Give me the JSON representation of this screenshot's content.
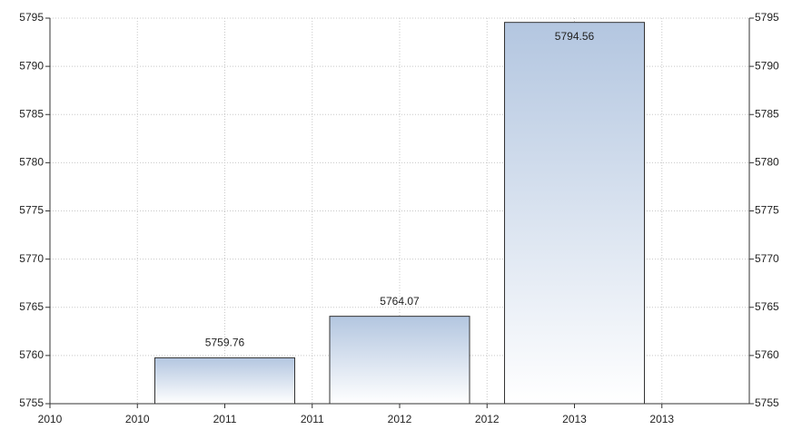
{
  "chart_data": {
    "type": "bar",
    "x": [
      2011,
      2012,
      2013
    ],
    "values": [
      5759.76,
      5764.07,
      5794.56
    ],
    "xlim": [
      2010,
      2014
    ],
    "xticks": [
      2010,
      {
        "value": 2010.5,
        "label": "2010"
      },
      2011,
      {
        "value": 2011.5,
        "label": "2011"
      },
      2012,
      {
        "value": 2012.5,
        "label": "2012"
      },
      2013,
      {
        "value": 2013.5,
        "label": "2013"
      }
    ],
    "ylim": [
      5755,
      5795
    ],
    "yticks": [
      5755,
      5760,
      5765,
      5770,
      5775,
      5780,
      5785,
      5790,
      5795
    ],
    "grid": true,
    "color": "#b3c6e0",
    "right_axis": true
  }
}
